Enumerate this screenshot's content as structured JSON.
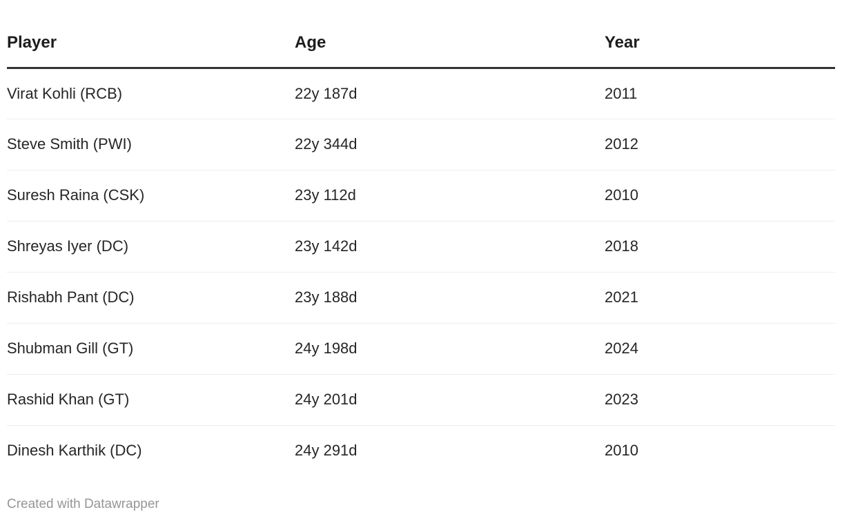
{
  "table": {
    "columns": [
      {
        "key": "player",
        "label": "Player"
      },
      {
        "key": "age",
        "label": "Age"
      },
      {
        "key": "year",
        "label": "Year"
      }
    ],
    "rows": [
      {
        "player": "Virat Kohli (RCB)",
        "age": "22y 187d",
        "year": "2011"
      },
      {
        "player": "Steve Smith (PWI)",
        "age": "22y 344d",
        "year": "2012"
      },
      {
        "player": "Suresh Raina (CSK)",
        "age": "23y 112d",
        "year": "2010"
      },
      {
        "player": "Shreyas Iyer (DC)",
        "age": "23y 142d",
        "year": "2018"
      },
      {
        "player": "Rishabh Pant (DC)",
        "age": "23y 188d",
        "year": "2021"
      },
      {
        "player": "Shubman Gill (GT)",
        "age": "24y 198d",
        "year": "2024"
      },
      {
        "player": "Rashid Khan (GT)",
        "age": "24y 201d",
        "year": "2023"
      },
      {
        "player": "Dinesh Karthik (DC)",
        "age": "24y 291d",
        "year": "2010"
      }
    ]
  },
  "footer": {
    "attribution": "Created with Datawrapper"
  },
  "colors": {
    "body_text": "#262626",
    "header_text": "#1d1d1d",
    "header_border": "#333333",
    "row_border": "#eeeeee",
    "footer_text": "#969696",
    "background": "#ffffff"
  },
  "chart_data": {
    "type": "table",
    "columns": [
      "Player",
      "Age",
      "Year"
    ],
    "rows": [
      [
        "Virat Kohli (RCB)",
        "22y 187d",
        2011
      ],
      [
        "Steve Smith (PWI)",
        "22y 344d",
        2012
      ],
      [
        "Suresh Raina (CSK)",
        "23y 112d",
        2010
      ],
      [
        "Shreyas Iyer (DC)",
        "23y 142d",
        2018
      ],
      [
        "Rishabh Pant (DC)",
        "23y 188d",
        2021
      ],
      [
        "Shubman Gill (GT)",
        "24y 198d",
        2024
      ],
      [
        "Rashid Khan (GT)",
        "24y 201d",
        2023
      ],
      [
        "Dinesh Karthik (DC)",
        "24y 291d",
        2010
      ]
    ],
    "title": "",
    "legend_position": "none",
    "grid": "horizontal-row-separators"
  }
}
